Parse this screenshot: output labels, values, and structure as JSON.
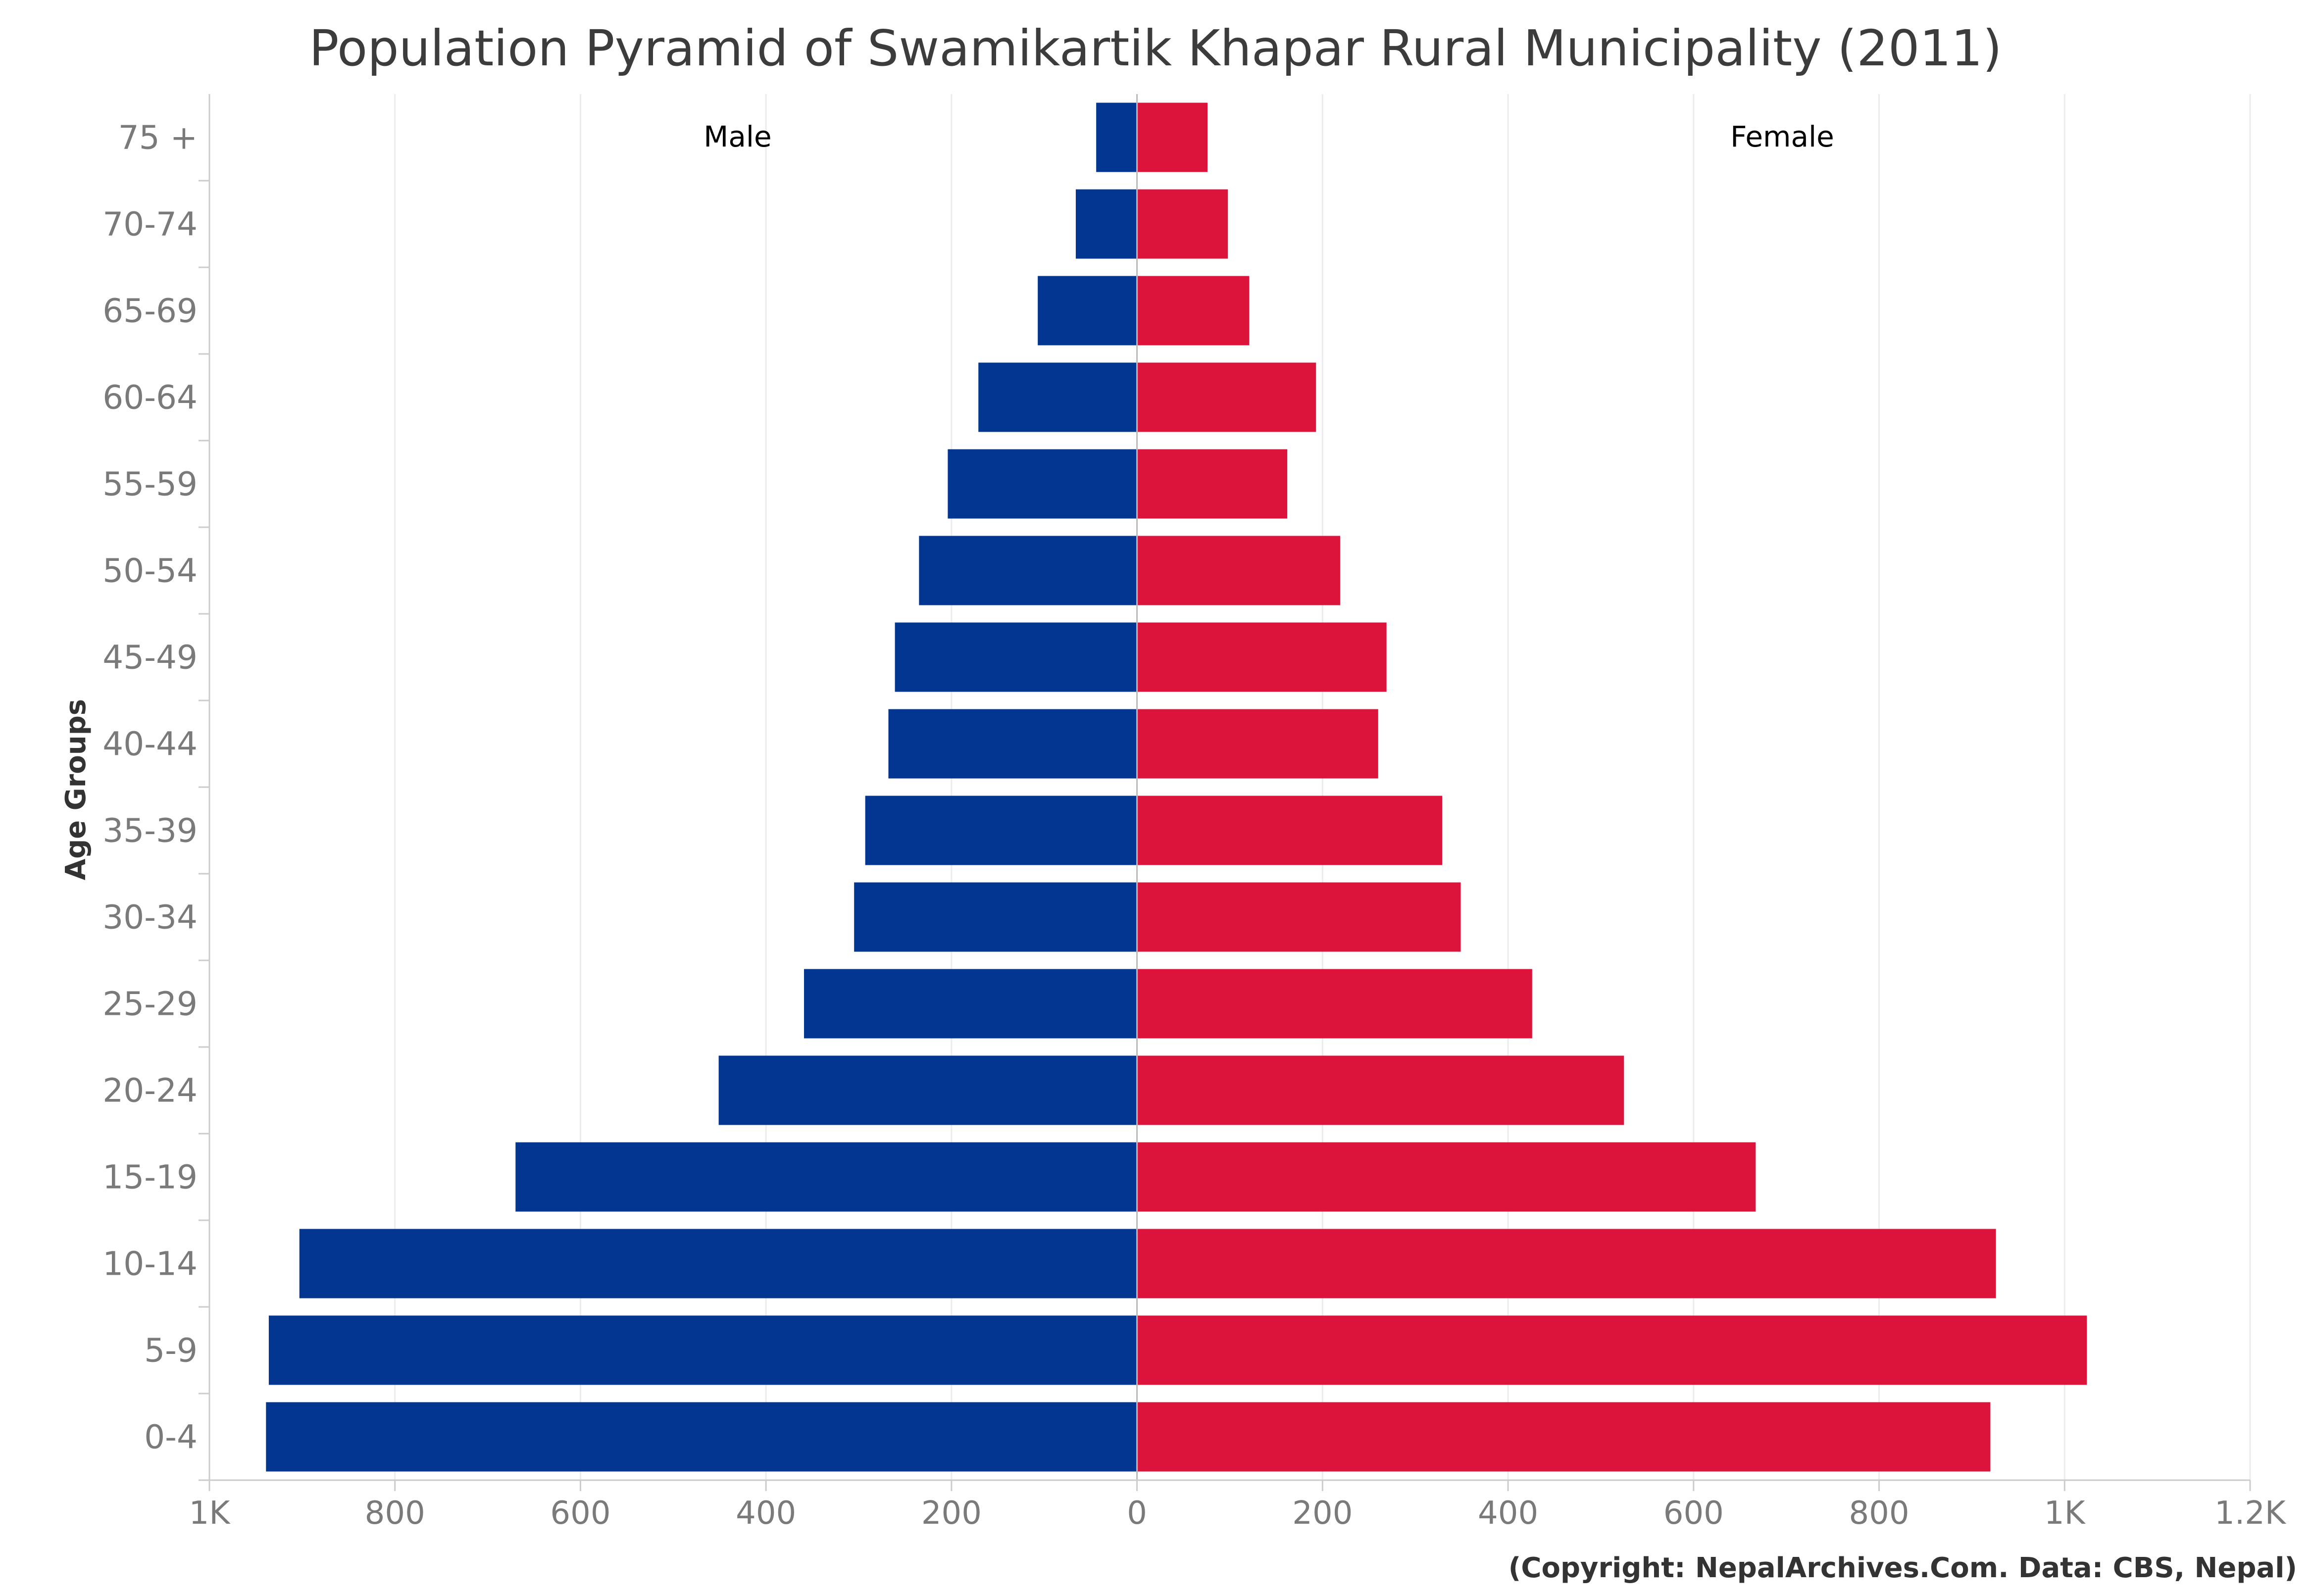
{
  "chart_data": {
    "type": "bar",
    "orientation": "horizontal",
    "layout": "population-pyramid",
    "title": "Population Pyramid of Swamikartik Khapar Rural Municipality (2011)",
    "ylabel": "Age Groups",
    "xlabel": "",
    "xlim": [
      -1000,
      1200
    ],
    "x_ticks": [
      {
        "value": -1000,
        "label": "1K"
      },
      {
        "value": -800,
        "label": "800"
      },
      {
        "value": -600,
        "label": "600"
      },
      {
        "value": -400,
        "label": "400"
      },
      {
        "value": -200,
        "label": "200"
      },
      {
        "value": 0,
        "label": "0"
      },
      {
        "value": 200,
        "label": "200"
      },
      {
        "value": 400,
        "label": "400"
      },
      {
        "value": 600,
        "label": "600"
      },
      {
        "value": 800,
        "label": "800"
      },
      {
        "value": 1000,
        "label": "1K"
      },
      {
        "value": 1200,
        "label": "1.2K"
      }
    ],
    "grid": true,
    "legend": "none",
    "categories": [
      "75 +",
      "70-74",
      "65-69",
      "60-64",
      "55-59",
      "50-54",
      "45-49",
      "40-44",
      "35-39",
      "30-34",
      "25-29",
      "20-24",
      "15-19",
      "10-14",
      "5-9",
      "0-4"
    ],
    "series": [
      {
        "name": "Male",
        "color": "#023691",
        "values": [
          44,
          66,
          107,
          171,
          204,
          235,
          261,
          268,
          293,
          305,
          359,
          451,
          670,
          903,
          936,
          939
        ]
      },
      {
        "name": "Female",
        "color": "#dc143c",
        "values": [
          76,
          98,
          121,
          193,
          162,
          219,
          269,
          260,
          329,
          349,
          426,
          525,
          667,
          926,
          1024,
          920
        ]
      }
    ],
    "credit": "(Copyright: NepalArchives.Com. Data: CBS, Nepal)"
  }
}
